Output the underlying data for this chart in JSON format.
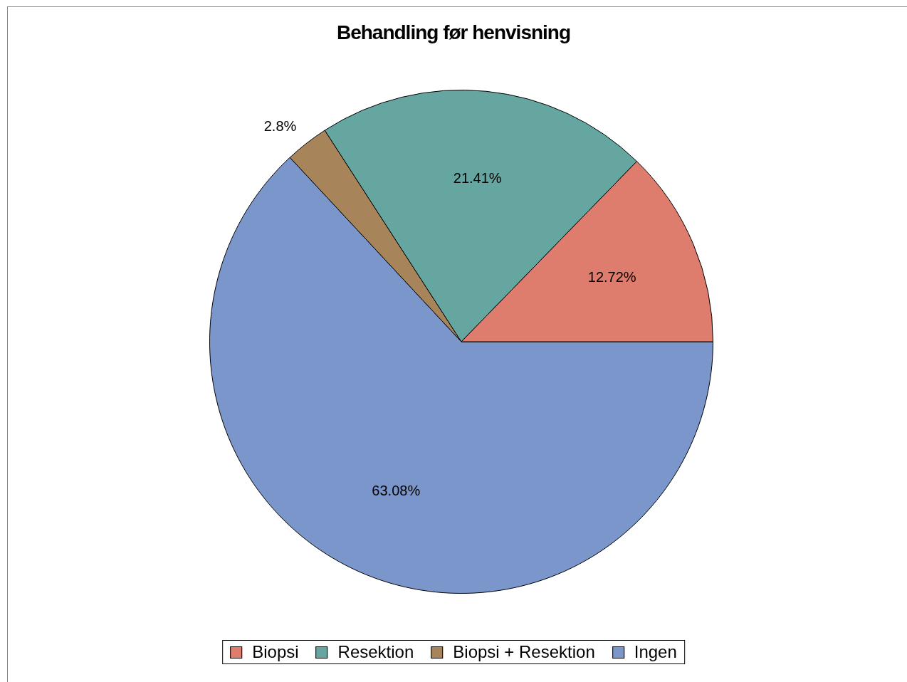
{
  "chart_data": {
    "type": "pie",
    "title": "Behandling før henvisning",
    "categories": [
      "Biopsi",
      "Resektion",
      "Biopsi + Resektion",
      "Ingen"
    ],
    "values": [
      12.72,
      21.41,
      2.8,
      63.08
    ],
    "colors": [
      "#de7d6e",
      "#66a6a0",
      "#a8845a",
      "#7b96cb"
    ],
    "value_labels": [
      "12.72%",
      "21.41%",
      "2.8%",
      "63.08%"
    ],
    "legend": "bottom"
  }
}
